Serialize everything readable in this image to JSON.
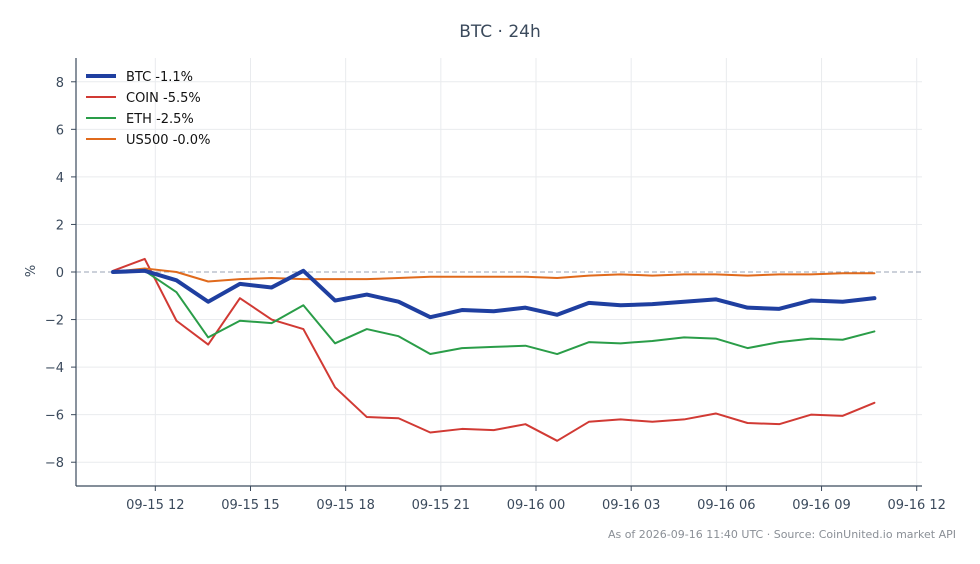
{
  "chart_data": {
    "type": "line",
    "title": "BTC · 24h",
    "xlabel": "",
    "ylabel": "%",
    "x_ticks": [
      "09-15 12",
      "09-15 15",
      "09-15 18",
      "09-15 21",
      "09-16 00",
      "09-16 03",
      "09-16 06",
      "09-16 09",
      "09-16 12"
    ],
    "y_ticks": [
      "8",
      "6",
      "4",
      "2",
      "0",
      "−2",
      "−4",
      "−6",
      "−8"
    ],
    "ylim": [
      -9,
      9
    ],
    "x_start": "2026-09-15 10:40",
    "x_range": [
      "2026-09-15 09:30",
      "2026-09-16 12:10"
    ],
    "reference_line": 0,
    "grid": true,
    "legend_position": "top-left",
    "series": [
      {
        "name": "BTC -1.1%",
        "color": "#1f3fa0",
        "values": [
          0.0,
          0.05,
          -0.35,
          -1.25,
          -0.5,
          -0.65,
          0.05,
          -1.2,
          -0.95,
          -1.25,
          -1.9,
          -1.6,
          -1.65,
          -1.5,
          -1.8,
          -1.3,
          -1.4,
          -1.35,
          -1.25,
          -1.15,
          -1.5,
          -1.55,
          -1.2,
          -1.25,
          -1.1
        ]
      },
      {
        "name": "COIN -5.5%",
        "color": "#d13a34",
        "values": [
          0.05,
          0.55,
          -2.05,
          -3.05,
          -1.1,
          -2.0,
          -2.4,
          -4.85,
          -6.1,
          -6.15,
          -6.75,
          -6.6,
          -6.65,
          -6.4,
          -7.1,
          -6.3,
          -6.2,
          -6.3,
          -6.2,
          -5.95,
          -6.35,
          -6.4,
          -6.0,
          -6.05,
          -5.5
        ]
      },
      {
        "name": "ETH -2.5%",
        "color": "#2a9d48",
        "values": [
          0.0,
          0.05,
          -0.85,
          -2.75,
          -2.05,
          -2.15,
          -1.4,
          -3.0,
          -2.4,
          -2.7,
          -3.45,
          -3.2,
          -3.15,
          -3.1,
          -3.45,
          -2.95,
          -3.0,
          -2.9,
          -2.75,
          -2.8,
          -3.2,
          -2.95,
          -2.8,
          -2.85,
          -2.5
        ]
      },
      {
        "name": "US500 -0.0%",
        "color": "#e06a1c",
        "values": [
          0.0,
          0.15,
          0.0,
          -0.4,
          -0.3,
          -0.25,
          -0.3,
          -0.3,
          -0.3,
          -0.25,
          -0.2,
          -0.2,
          -0.2,
          -0.2,
          -0.25,
          -0.15,
          -0.1,
          -0.15,
          -0.1,
          -0.1,
          -0.15,
          -0.1,
          -0.1,
          -0.05,
          -0.05
        ]
      }
    ]
  },
  "footer": "As of 2026-09-16 11:40 UTC · Source: CoinUnited.io market API"
}
